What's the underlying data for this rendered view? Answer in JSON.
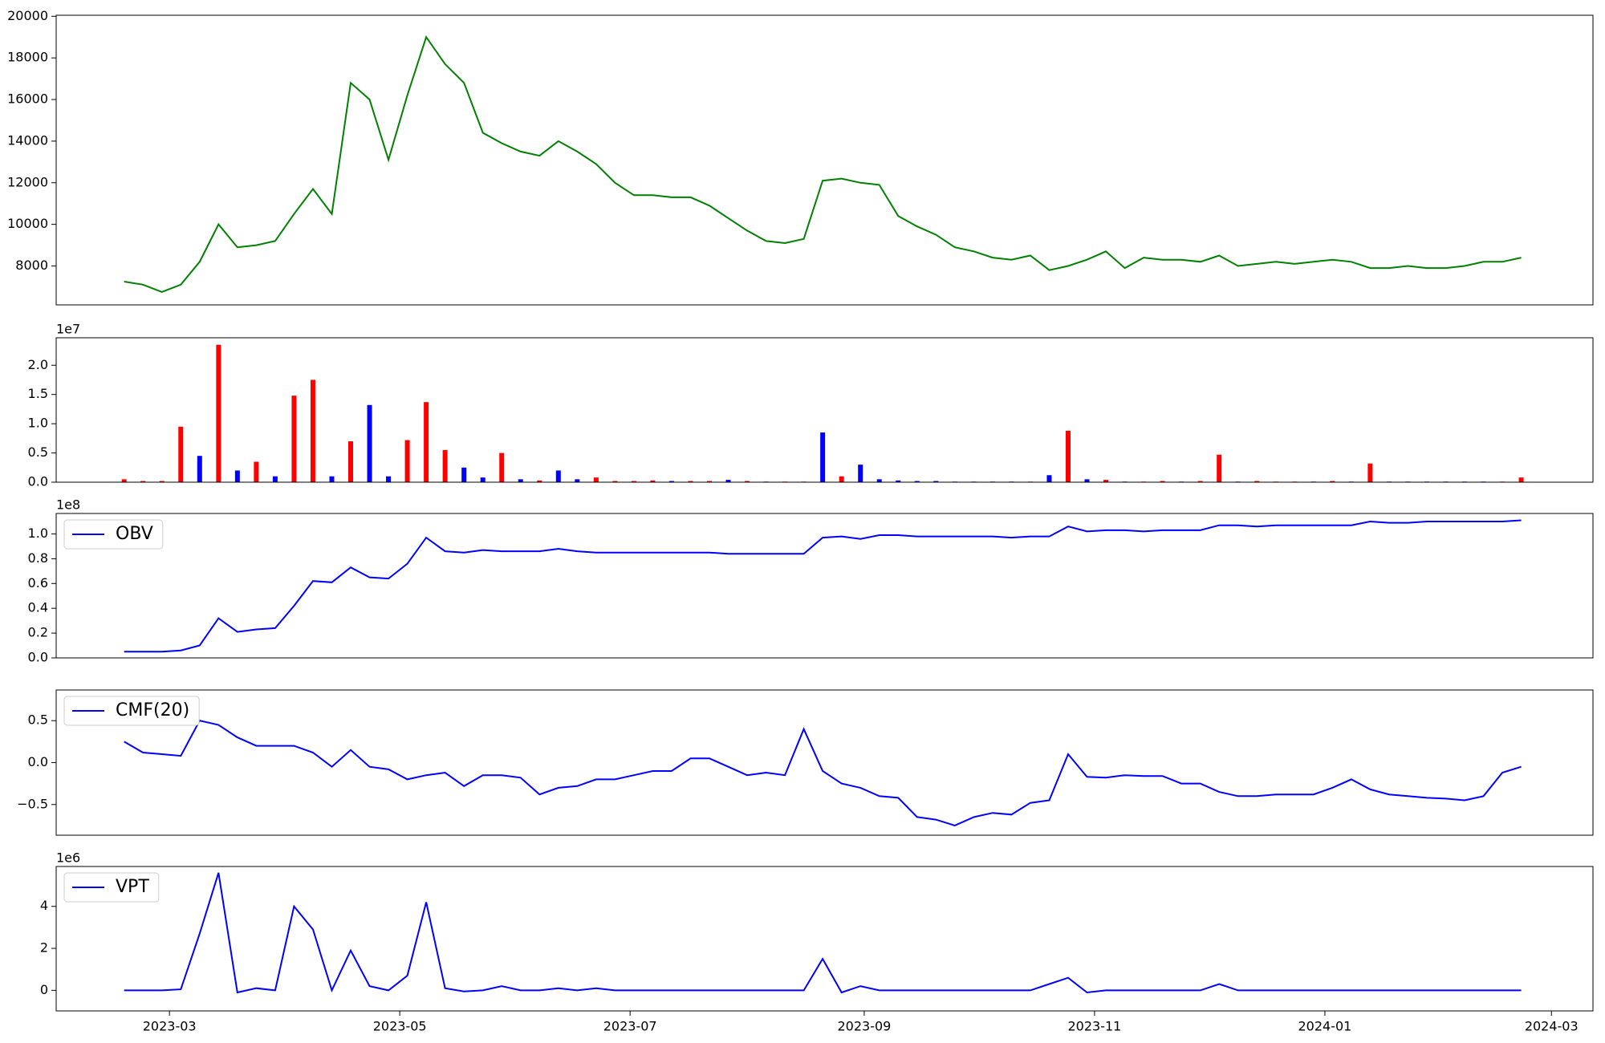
{
  "chart_data": [
    {
      "type": "line",
      "color": "green",
      "x": [
        19405,
        19410,
        19415,
        19420,
        19425,
        19430,
        19435,
        19440,
        19445,
        19450,
        19455,
        19460,
        19465,
        19470,
        19475,
        19480,
        19485,
        19490,
        19495,
        19500,
        19505,
        19510,
        19515,
        19520,
        19525,
        19530,
        19535,
        19540,
        19545,
        19550,
        19555,
        19560,
        19565,
        19570,
        19575,
        19580,
        19585,
        19590,
        19595,
        19600,
        19605,
        19610,
        19615,
        19620,
        19625,
        19630,
        19635,
        19640,
        19645,
        19650,
        19655,
        19660,
        19665,
        19670,
        19675,
        19680,
        19685,
        19690,
        19695,
        19700,
        19705,
        19710,
        19715,
        19720,
        19725,
        19730,
        19735,
        19740,
        19745,
        19750,
        19755,
        19760,
        19765,
        19770,
        19775
      ],
      "values": [
        7250,
        7100,
        6750,
        7100,
        8200,
        10000,
        8900,
        9000,
        9200,
        10500,
        11700,
        10500,
        16800,
        16000,
        13100,
        16200,
        19000,
        17700,
        16800,
        14400,
        13900,
        13500,
        13300,
        14000,
        13500,
        12900,
        12000,
        11400,
        11400,
        11300,
        11300,
        10900,
        10300,
        9700,
        9200,
        9100,
        9300,
        12100,
        12200,
        12000,
        11900,
        10400,
        9900,
        9500,
        8900,
        8700,
        8400,
        8300,
        8500,
        7800,
        8000,
        8300,
        8700,
        7900,
        8400,
        8300,
        8300,
        8200,
        8500,
        8000,
        8100,
        8200,
        8100,
        8200,
        8300,
        8200,
        7900,
        7900,
        8000,
        7900,
        7900,
        8000,
        8200,
        8200,
        8400
      ],
      "xlim": [
        19387,
        19794
      ],
      "ylim": [
        6130,
        20050
      ],
      "yticks": [
        8000,
        10000,
        12000,
        14000,
        16000,
        18000,
        20000
      ]
    },
    {
      "type": "bar",
      "y_offset_label": "1e7",
      "x": [
        19405,
        19410,
        19415,
        19420,
        19425,
        19430,
        19435,
        19440,
        19445,
        19450,
        19455,
        19460,
        19465,
        19470,
        19475,
        19480,
        19485,
        19490,
        19495,
        19500,
        19505,
        19510,
        19515,
        19520,
        19525,
        19530,
        19535,
        19540,
        19545,
        19550,
        19555,
        19560,
        19565,
        19570,
        19575,
        19580,
        19585,
        19590,
        19595,
        19600,
        19605,
        19610,
        19615,
        19620,
        19625,
        19630,
        19635,
        19640,
        19645,
        19650,
        19655,
        19660,
        19665,
        19670,
        19675,
        19680,
        19685,
        19690,
        19695,
        19700,
        19705,
        19710,
        19715,
        19720,
        19725,
        19730,
        19735,
        19740,
        19745,
        19750,
        19755,
        19760,
        19765,
        19770,
        19775
      ],
      "values": [
        0.05,
        0.02,
        0.02,
        0.95,
        0.45,
        2.35,
        0.2,
        0.35,
        0.1,
        1.48,
        1.75,
        0.1,
        0.7,
        1.32,
        0.1,
        0.72,
        1.37,
        0.55,
        0.25,
        0.08,
        0.5,
        0.05,
        0.03,
        0.2,
        0.05,
        0.08,
        0.02,
        0.02,
        0.03,
        0.02,
        0.02,
        0.02,
        0.04,
        0.02,
        0.01,
        0.01,
        0.01,
        0.85,
        0.1,
        0.3,
        0.05,
        0.03,
        0.02,
        0.02,
        0.01,
        0.01,
        0.01,
        0.01,
        0.01,
        0.12,
        0.88,
        0.05,
        0.04,
        0.01,
        0.01,
        0.02,
        0.01,
        0.02,
        0.47,
        0.01,
        0.02,
        0.01,
        0.01,
        0.01,
        0.02,
        0.01,
        0.32,
        0.01,
        0.01,
        0.01,
        0.01,
        0.01,
        0.01,
        0.01,
        0.08
      ],
      "bar_colors": [
        "red",
        "red",
        "red",
        "red",
        "blue",
        "red",
        "blue",
        "red",
        "blue",
        "red",
        "red",
        "blue",
        "red",
        "blue",
        "blue",
        "red",
        "red",
        "red",
        "blue",
        "blue",
        "red",
        "blue",
        "red",
        "blue",
        "blue",
        "red",
        "red",
        "red",
        "red",
        "blue",
        "red",
        "red",
        "blue",
        "red",
        "blue",
        "red",
        "red",
        "blue",
        "red",
        "blue",
        "blue",
        "blue",
        "blue",
        "blue",
        "blue",
        "blue",
        "blue",
        "blue",
        "red",
        "blue",
        "red",
        "blue",
        "red",
        "blue",
        "red",
        "red",
        "blue",
        "red",
        "red",
        "blue",
        "red",
        "red",
        "red",
        "blue",
        "red",
        "blue",
        "red",
        "blue",
        "blue",
        "blue",
        "blue",
        "blue",
        "blue",
        "red",
        "red"
      ],
      "xlim": [
        19387,
        19794
      ],
      "ylim": [
        0,
        2.47
      ],
      "yticks": [
        {
          "value": 0,
          "label": "0.0"
        },
        0.5,
        {
          "value": 1,
          "label": "1.0"
        },
        1.5,
        {
          "value": 2,
          "label": "2.0"
        }
      ]
    },
    {
      "type": "line",
      "y_offset_label": "1e8",
      "legend": "upper left",
      "x": [
        19405,
        19410,
        19415,
        19420,
        19425,
        19430,
        19435,
        19440,
        19445,
        19450,
        19455,
        19460,
        19465,
        19470,
        19475,
        19480,
        19485,
        19490,
        19495,
        19500,
        19505,
        19510,
        19515,
        19520,
        19525,
        19530,
        19535,
        19540,
        19545,
        19550,
        19555,
        19560,
        19565,
        19570,
        19575,
        19580,
        19585,
        19590,
        19595,
        19600,
        19605,
        19610,
        19615,
        19620,
        19625,
        19630,
        19635,
        19640,
        19645,
        19650,
        19655,
        19660,
        19665,
        19670,
        19675,
        19680,
        19685,
        19690,
        19695,
        19700,
        19705,
        19710,
        19715,
        19720,
        19725,
        19730,
        19735,
        19740,
        19745,
        19750,
        19755,
        19760,
        19765,
        19770,
        19775
      ],
      "series": [
        {
          "name": "OBV",
          "color": "blue",
          "values": [
            0.05,
            0.05,
            0.05,
            0.06,
            0.1,
            0.32,
            0.21,
            0.23,
            0.24,
            0.42,
            0.62,
            0.61,
            0.73,
            0.65,
            0.64,
            0.76,
            0.97,
            0.86,
            0.85,
            0.87,
            0.86,
            0.86,
            0.86,
            0.88,
            0.86,
            0.85,
            0.85,
            0.85,
            0.85,
            0.85,
            0.85,
            0.85,
            0.84,
            0.84,
            0.84,
            0.84,
            0.84,
            0.97,
            0.98,
            0.96,
            0.99,
            0.99,
            0.98,
            0.98,
            0.98,
            0.98,
            0.98,
            0.97,
            0.98,
            0.98,
            1.06,
            1.02,
            1.03,
            1.03,
            1.02,
            1.03,
            1.03,
            1.03,
            1.07,
            1.07,
            1.06,
            1.07,
            1.07,
            1.07,
            1.07,
            1.07,
            1.1,
            1.09,
            1.09,
            1.1,
            1.1,
            1.1,
            1.1,
            1.1,
            1.11
          ]
        }
      ],
      "xlim": [
        19387,
        19794
      ],
      "ylim": [
        0,
        1.165
      ],
      "yticks": [
        {
          "value": 0,
          "label": "0.0"
        },
        0.2,
        0.4,
        0.6,
        0.8,
        {
          "value": 1,
          "label": "1.0"
        }
      ]
    },
    {
      "type": "line",
      "legend": "upper left",
      "x": [
        19405,
        19410,
        19415,
        19420,
        19425,
        19430,
        19435,
        19440,
        19445,
        19450,
        19455,
        19460,
        19465,
        19470,
        19475,
        19480,
        19485,
        19490,
        19495,
        19500,
        19505,
        19510,
        19515,
        19520,
        19525,
        19530,
        19535,
        19540,
        19545,
        19550,
        19555,
        19560,
        19565,
        19570,
        19575,
        19580,
        19585,
        19590,
        19595,
        19600,
        19605,
        19610,
        19615,
        19620,
        19625,
        19630,
        19635,
        19640,
        19645,
        19650,
        19655,
        19660,
        19665,
        19670,
        19675,
        19680,
        19685,
        19690,
        19695,
        19700,
        19705,
        19710,
        19715,
        19720,
        19725,
        19730,
        19735,
        19740,
        19745,
        19750,
        19755,
        19760,
        19765,
        19770,
        19775
      ],
      "series": [
        {
          "name": "CMF(20)",
          "color": "blue",
          "values": [
            0.25,
            0.12,
            0.1,
            0.08,
            0.5,
            0.45,
            0.3,
            0.2,
            0.2,
            0.2,
            0.12,
            -0.05,
            0.15,
            -0.05,
            -0.08,
            -0.2,
            -0.15,
            -0.12,
            -0.28,
            -0.15,
            -0.15,
            -0.18,
            -0.38,
            -0.3,
            -0.28,
            -0.2,
            -0.2,
            -0.15,
            -0.1,
            -0.1,
            0.05,
            0.05,
            -0.05,
            -0.15,
            -0.12,
            -0.15,
            0.4,
            -0.1,
            -0.25,
            -0.3,
            -0.4,
            -0.42,
            -0.65,
            -0.68,
            -0.75,
            -0.65,
            -0.6,
            -0.62,
            -0.48,
            -0.45,
            0.1,
            -0.17,
            -0.18,
            -0.15,
            -0.16,
            -0.16,
            -0.25,
            -0.25,
            -0.35,
            -0.4,
            -0.4,
            -0.38,
            -0.38,
            -0.38,
            -0.3,
            -0.2,
            -0.32,
            -0.38,
            -0.4,
            -0.42,
            -0.43,
            -0.45,
            -0.4,
            -0.12,
            -0.05
          ]
        }
      ],
      "xlim": [
        19387,
        19794
      ],
      "ylim": [
        -0.866,
        0.866
      ],
      "yticks": [
        {
          "value": -0.5,
          "label": "−0.5"
        },
        {
          "value": 0,
          "label": "0.0"
        },
        0.5
      ]
    },
    {
      "type": "line",
      "y_offset_label": "1e6",
      "legend": "upper left",
      "x": [
        19405,
        19410,
        19415,
        19420,
        19425,
        19430,
        19435,
        19440,
        19445,
        19450,
        19455,
        19460,
        19465,
        19470,
        19475,
        19480,
        19485,
        19490,
        19495,
        19500,
        19505,
        19510,
        19515,
        19520,
        19525,
        19530,
        19535,
        19540,
        19545,
        19550,
        19555,
        19560,
        19565,
        19570,
        19575,
        19580,
        19585,
        19590,
        19595,
        19600,
        19605,
        19610,
        19615,
        19620,
        19625,
        19630,
        19635,
        19640,
        19645,
        19650,
        19655,
        19660,
        19665,
        19670,
        19675,
        19680,
        19685,
        19690,
        19695,
        19700,
        19705,
        19710,
        19715,
        19720,
        19725,
        19730,
        19735,
        19740,
        19745,
        19750,
        19755,
        19760,
        19765,
        19770,
        19775
      ],
      "series": [
        {
          "name": "VPT",
          "color": "blue",
          "values": [
            0,
            0,
            0,
            0.05,
            2.7,
            5.6,
            -0.1,
            0.1,
            0,
            4.0,
            2.9,
            0,
            1.9,
            0.2,
            0,
            0.7,
            4.2,
            0.1,
            -0.05,
            0,
            0.2,
            0,
            0,
            0.1,
            0,
            0.1,
            0,
            0,
            0,
            0,
            0,
            0,
            0,
            0,
            0,
            0,
            0,
            1.5,
            -0.1,
            0.2,
            0,
            0,
            0,
            0,
            0,
            0,
            0,
            0,
            0,
            0.3,
            0.6,
            -0.1,
            0,
            0,
            0,
            0,
            0,
            0,
            0.3,
            0,
            0,
            0,
            0,
            0,
            0,
            0,
            0,
            0,
            0,
            0,
            0,
            0,
            0,
            0,
            0
          ]
        }
      ],
      "xlim": [
        19387,
        19794
      ],
      "ylim": [
        -0.98,
        5.9
      ],
      "yticks": [
        0,
        2,
        4
      ],
      "xticks": [
        {
          "value": 19417,
          "label": "2023-03"
        },
        {
          "value": 19478,
          "label": "2023-05"
        },
        {
          "value": 19539,
          "label": "2023-07"
        },
        {
          "value": 19601,
          "label": "2023-09"
        },
        {
          "value": 19662,
          "label": "2023-11"
        },
        {
          "value": 19723,
          "label": "2024-01"
        },
        {
          "value": 19783,
          "label": "2024-03"
        }
      ]
    }
  ]
}
